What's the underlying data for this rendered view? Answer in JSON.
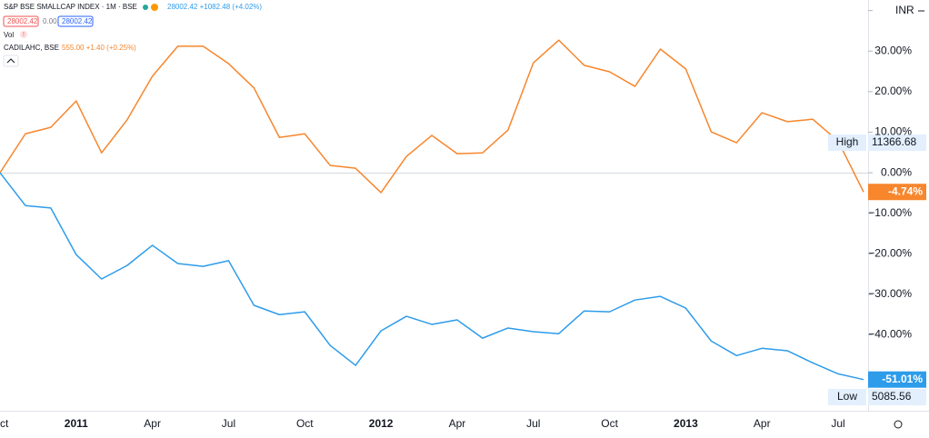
{
  "chart_data": {
    "type": "line",
    "categories": [
      "Oct",
      null,
      null,
      "2011",
      null,
      null,
      "Apr",
      null,
      null,
      "Jul",
      null,
      null,
      "Oct",
      null,
      null,
      "2012",
      null,
      null,
      "Apr",
      null,
      null,
      "Jul",
      null,
      null,
      "Oct",
      null,
      null,
      "2013",
      null,
      null,
      "Apr",
      null,
      null,
      "Jul",
      null
    ],
    "series": [
      {
        "name": "CADILAHC, BSE",
        "color": "#f7862d",
        "legend_value": "555.00 +1.40 (+0.25%)",
        "last_value_label": "-4.74%",
        "values": [
          0,
          9.6,
          11.2,
          17.7,
          4.9,
          13,
          23.8,
          31.2,
          31.2,
          26.9,
          20.9,
          8.7,
          9.6,
          1.8,
          1.1,
          -4.9,
          4.0,
          9.2,
          4.7,
          4.9,
          10.5,
          27.1,
          32.7,
          26.5,
          24.9,
          21.3,
          30.5,
          25.6,
          10.1,
          7.4,
          14.8,
          12.6,
          13.2,
          7.8,
          -4.74
        ]
      },
      {
        "name": "S&P BSE SMALLCAP INDEX · 1M · BSE",
        "color": "#2d9cea",
        "legend_value": "28002.42 +1082.48 (+4.02%)",
        "last_value_label": "-51.01%",
        "values": [
          0,
          -8.1,
          -8.7,
          -20.2,
          -26.2,
          -22.9,
          -17.9,
          -22.4,
          -23.1,
          -21.7,
          -32.7,
          -35,
          -34.3,
          -42.6,
          -47.5,
          -39,
          -35.4,
          -37.4,
          -36.3,
          -40.8,
          -38.3,
          -39.2,
          -39.7,
          -34.1,
          -34.3,
          -31.4,
          -30.5,
          -33.4,
          -41.5,
          -45.1,
          -43.3,
          -43.9,
          -46.9,
          -49.6,
          -51.01
        ]
      }
    ],
    "ylim": [
      -58.7,
      42.6
    ],
    "yticks": [
      40,
      {
        "value": 30,
        "label": "30.00%"
      },
      {
        "value": 20,
        "label": "20.00%"
      },
      {
        "value": 10,
        "label": "10.00%"
      },
      {
        "value": 0,
        "label": "0.00%"
      },
      {
        "value": -10,
        "label": "−10.00%"
      },
      {
        "value": -20,
        "label": "−20.00%"
      },
      {
        "value": -30,
        "label": "−30.00%"
      },
      {
        "value": -40,
        "label": "−40.00%"
      }
    ],
    "grid": false
  },
  "header": {
    "boxes": [
      "28002.42",
      "0.00",
      "28002.42"
    ],
    "vol": "Vol",
    "currency": "INR",
    "high": {
      "label": "High",
      "value": "11366.68"
    },
    "low": {
      "label": "Low",
      "value": "5085.56"
    }
  }
}
